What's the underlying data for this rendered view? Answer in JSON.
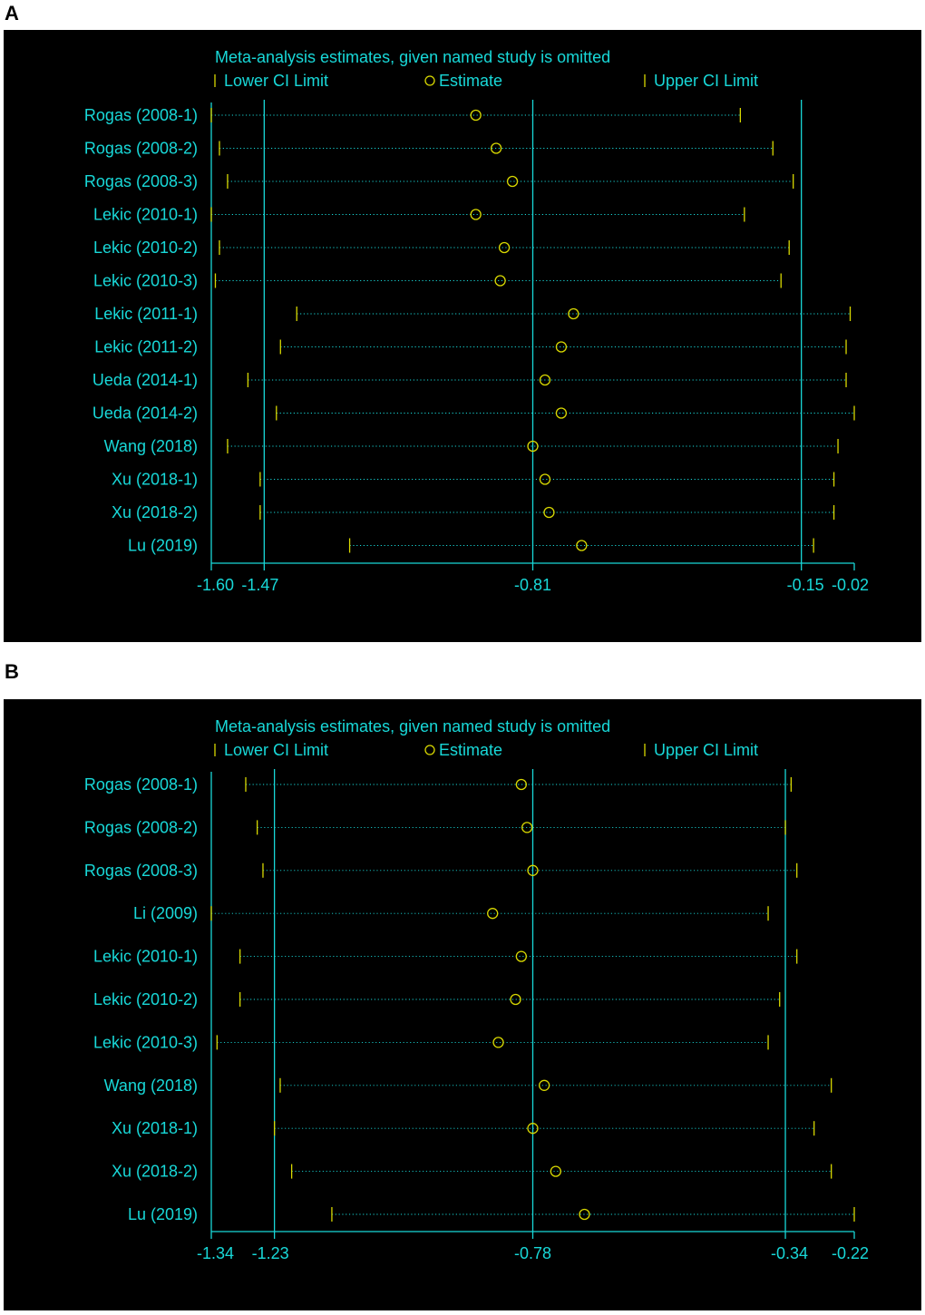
{
  "figure": {
    "panels": [
      {
        "letter": "A",
        "title": "Meta-analysis estimates, given named study is omitted",
        "legend": {
          "lower": "Lower CI Limit",
          "estimate": "Estimate",
          "upper": "Upper CI Limit"
        },
        "tick_labels": [
          "-1.60",
          "-1.47",
          "-0.81",
          "-0.15",
          "-0.02"
        ]
      },
      {
        "letter": "B",
        "title": "Meta-analysis estimates, given named study is omitted",
        "legend": {
          "lower": "Lower CI Limit",
          "estimate": "Estimate",
          "upper": "Upper CI Limit"
        },
        "tick_labels": [
          "-1.34",
          "-1.23",
          "-0.78",
          "-0.34",
          "-0.22"
        ]
      }
    ]
  },
  "colors": {
    "background": "#000000",
    "axis_and_text": "#18d8d8",
    "markers": "#d8d800"
  },
  "chart_data": [
    {
      "type": "scatter",
      "subtype": "forest-sensitivity",
      "title": "Meta-analysis estimates, given named study is omitted",
      "xlim": [
        -1.6,
        -0.02
      ],
      "ticks": [
        -1.6,
        -1.47,
        -0.81,
        -0.15,
        -0.02
      ],
      "reference_lines": [
        -1.47,
        -0.81,
        -0.15
      ],
      "studies": [
        "Rogas (2008-1)",
        "Rogas (2008-2)",
        "Rogas (2008-3)",
        "Lekic (2010-1)",
        "Lekic (2010-2)",
        "Lekic (2010-3)",
        "Lekic (2011-1)",
        "Lekic (2011-2)",
        "Ueda (2014-1)",
        "Ueda (2014-2)",
        "Wang (2018)",
        "Xu (2018-1)",
        "Xu (2018-2)",
        "Lu (2019)"
      ],
      "series": [
        {
          "name": "Lower CI Limit",
          "values": [
            -1.6,
            -1.58,
            -1.56,
            -1.6,
            -1.58,
            -1.59,
            -1.39,
            -1.43,
            -1.51,
            -1.44,
            -1.56,
            -1.48,
            -1.48,
            -1.26
          ]
        },
        {
          "name": "Estimate",
          "values": [
            -0.95,
            -0.9,
            -0.86,
            -0.95,
            -0.88,
            -0.89,
            -0.71,
            -0.74,
            -0.78,
            -0.74,
            -0.81,
            -0.78,
            -0.77,
            -0.69
          ]
        },
        {
          "name": "Upper CI Limit",
          "values": [
            -0.3,
            -0.22,
            -0.17,
            -0.29,
            -0.18,
            -0.2,
            -0.03,
            -0.04,
            -0.04,
            -0.02,
            -0.06,
            -0.07,
            -0.07,
            -0.12
          ]
        }
      ],
      "grid": false
    },
    {
      "type": "scatter",
      "subtype": "forest-sensitivity",
      "title": "Meta-analysis estimates, given named study is omitted",
      "xlim": [
        -1.34,
        -0.22
      ],
      "ticks": [
        -1.34,
        -1.23,
        -0.78,
        -0.34,
        -0.22
      ],
      "reference_lines": [
        -1.23,
        -0.78,
        -0.34
      ],
      "studies": [
        "Rogas (2008-1)",
        "Rogas (2008-2)",
        "Rogas (2008-3)",
        "Li (2009)",
        "Lekic (2010-1)",
        "Lekic (2010-2)",
        "Lekic (2010-3)",
        "Wang (2018)",
        "Xu (2018-1)",
        "Xu (2018-2)",
        "Lu (2019)"
      ],
      "series": [
        {
          "name": "Lower CI Limit",
          "values": [
            -1.28,
            -1.26,
            -1.25,
            -1.34,
            -1.29,
            -1.29,
            -1.33,
            -1.22,
            -1.23,
            -1.2,
            -1.13
          ]
        },
        {
          "name": "Estimate",
          "values": [
            -0.8,
            -0.79,
            -0.78,
            -0.85,
            -0.8,
            -0.81,
            -0.84,
            -0.76,
            -0.78,
            -0.74,
            -0.69
          ]
        },
        {
          "name": "Upper CI Limit",
          "values": [
            -0.33,
            -0.34,
            -0.32,
            -0.37,
            -0.32,
            -0.35,
            -0.37,
            -0.26,
            -0.29,
            -0.26,
            -0.22
          ]
        }
      ],
      "grid": false
    }
  ]
}
